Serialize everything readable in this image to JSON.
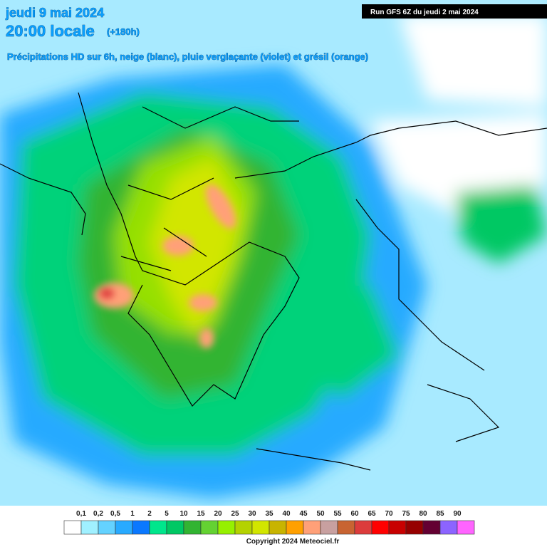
{
  "header": {
    "date": "jeudi 9 mai 2024",
    "time": "20:00 locale",
    "lead": "(+180h)",
    "subtitle": "Précipitations HD sur 6h, neige (blanc), pluie verglaçante (violet) et grésil (orange)",
    "run": "Run GFS 6Z du jeudi 2 mai 2024"
  },
  "legend": {
    "labels": [
      "0,1",
      "0,2",
      "0,5",
      "1",
      "2",
      "5",
      "10",
      "15",
      "20",
      "25",
      "30",
      "35",
      "40",
      "45",
      "50",
      "55",
      "60",
      "65",
      "70",
      "75",
      "80",
      "85",
      "90"
    ],
    "colors": [
      "#ffffff",
      "#a0f0ff",
      "#64d2ff",
      "#28aaff",
      "#0a78ff",
      "#00e68c",
      "#00c864",
      "#32b432",
      "#64d232",
      "#96f000",
      "#b4d200",
      "#d2e600",
      "#c8b400",
      "#ffa000",
      "#ffa078",
      "#c8a0a0",
      "#c86432",
      "#dc3c3c",
      "#ff0000",
      "#c80000",
      "#960000",
      "#640032",
      "#8c64ff",
      "#ff64ff"
    ]
  },
  "footer": {
    "copyright": "Copyright 2024 Meteociel.fr"
  }
}
